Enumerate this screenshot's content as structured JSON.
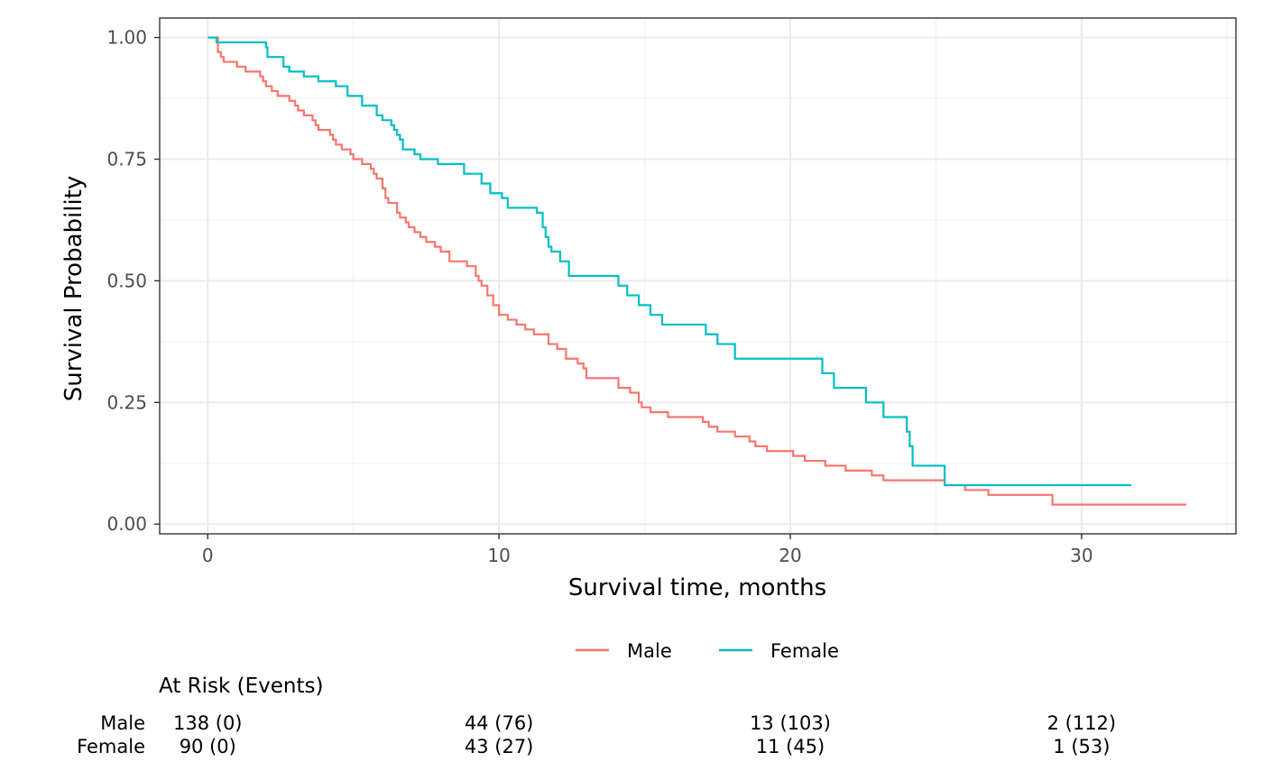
{
  "chart_data": {
    "type": "line",
    "subtype": "kaplan-meier-step",
    "title": "",
    "xlabel": "Survival time, months",
    "ylabel": "Survival Probability",
    "xlim": [
      -1.65,
      35.3
    ],
    "ylim": [
      -0.02,
      1.04
    ],
    "x_ticks": [
      0,
      10,
      20,
      30
    ],
    "x_tick_labels": [
      "0",
      "10",
      "20",
      "30"
    ],
    "y_ticks": [
      0,
      0.25,
      0.5,
      0.75,
      1.0
    ],
    "y_tick_labels": [
      "0.00",
      "0.25",
      "0.50",
      "0.75",
      "1.00"
    ],
    "grid": true,
    "legend_position": "bottom",
    "legend": [
      "Male",
      "Female"
    ],
    "series": [
      {
        "name": "Male",
        "color": "#F8766D",
        "x": [
          0,
          0.35,
          0.45,
          0.55,
          0.6,
          1.0,
          1.3,
          1.8,
          1.9,
          2.0,
          2.2,
          2.4,
          2.8,
          3.0,
          3.1,
          3.3,
          3.6,
          3.7,
          3.8,
          4.2,
          4.3,
          4.4,
          4.6,
          4.9,
          5.0,
          5.3,
          5.6,
          5.7,
          5.8,
          6.0,
          6.1,
          6.2,
          6.5,
          6.6,
          6.8,
          6.9,
          7.1,
          7.3,
          7.5,
          7.8,
          8.0,
          8.3,
          8.9,
          9.2,
          9.3,
          9.4,
          9.6,
          9.8,
          10.0,
          10.3,
          10.6,
          10.9,
          11.2,
          11.7,
          12.0,
          12.3,
          12.7,
          12.9,
          13.0,
          14.1,
          14.5,
          14.8,
          14.9,
          15.2,
          15.8,
          17.0,
          17.2,
          17.5,
          18.1,
          18.6,
          18.8,
          19.2,
          20.1,
          20.5,
          21.2,
          21.9,
          22.8,
          23.2,
          25.3,
          26.0,
          26.8,
          29.0,
          33.6
        ],
        "y": [
          1.0,
          0.97,
          0.96,
          0.95,
          0.95,
          0.94,
          0.93,
          0.92,
          0.91,
          0.9,
          0.89,
          0.88,
          0.87,
          0.86,
          0.85,
          0.84,
          0.83,
          0.82,
          0.81,
          0.8,
          0.79,
          0.78,
          0.77,
          0.76,
          0.75,
          0.74,
          0.73,
          0.72,
          0.71,
          0.69,
          0.67,
          0.66,
          0.64,
          0.63,
          0.62,
          0.61,
          0.6,
          0.59,
          0.58,
          0.57,
          0.56,
          0.54,
          0.53,
          0.51,
          0.5,
          0.49,
          0.47,
          0.45,
          0.43,
          0.42,
          0.41,
          0.4,
          0.39,
          0.37,
          0.36,
          0.34,
          0.33,
          0.32,
          0.3,
          0.28,
          0.27,
          0.25,
          0.24,
          0.23,
          0.22,
          0.21,
          0.2,
          0.19,
          0.18,
          0.17,
          0.16,
          0.15,
          0.14,
          0.13,
          0.12,
          0.11,
          0.1,
          0.09,
          0.08,
          0.07,
          0.06,
          0.04,
          0.04
        ]
      },
      {
        "name": "Female",
        "color": "#00BFC4",
        "x": [
          0,
          0.3,
          2.0,
          2.05,
          2.6,
          2.8,
          3.3,
          3.8,
          4.4,
          4.8,
          5.3,
          5.8,
          6.0,
          6.3,
          6.4,
          6.5,
          6.6,
          6.7,
          7.1,
          7.3,
          7.9,
          8.8,
          9.4,
          9.7,
          10.1,
          10.3,
          11.3,
          11.5,
          11.6,
          11.7,
          11.8,
          12.1,
          12.4,
          14.1,
          14.4,
          14.8,
          15.2,
          15.6,
          17.1,
          17.5,
          18.1,
          21.1,
          21.5,
          22.6,
          23.2,
          24.0,
          24.1,
          24.2,
          25.3,
          31.7
        ],
        "y": [
          1.0,
          0.99,
          0.98,
          0.96,
          0.94,
          0.93,
          0.92,
          0.91,
          0.9,
          0.88,
          0.86,
          0.84,
          0.83,
          0.82,
          0.81,
          0.8,
          0.79,
          0.77,
          0.76,
          0.75,
          0.74,
          0.72,
          0.7,
          0.68,
          0.67,
          0.65,
          0.64,
          0.61,
          0.59,
          0.57,
          0.56,
          0.54,
          0.51,
          0.49,
          0.47,
          0.45,
          0.43,
          0.41,
          0.39,
          0.37,
          0.34,
          0.31,
          0.28,
          0.25,
          0.22,
          0.19,
          0.16,
          0.12,
          0.08,
          0.08
        ]
      }
    ],
    "risk_table": {
      "title": "At Risk (Events)",
      "times": [
        0,
        10,
        20,
        30
      ],
      "rows": [
        {
          "name": "Male",
          "values": [
            "138 (0)",
            "44 (76)",
            "13 (103)",
            "2 (112)"
          ]
        },
        {
          "name": "Female",
          "values": [
            "90 (0)",
            "43 (27)",
            "11 (45)",
            "1 (53)"
          ]
        }
      ]
    }
  }
}
